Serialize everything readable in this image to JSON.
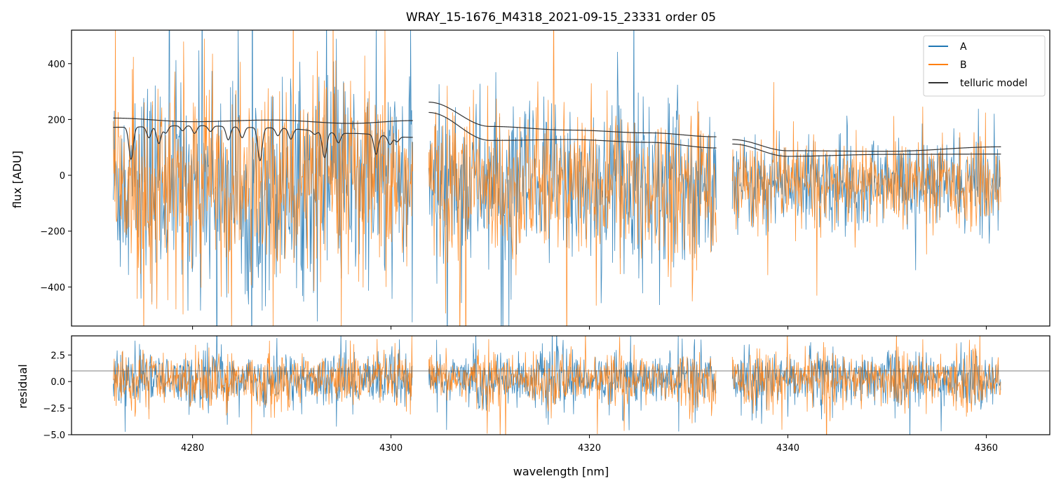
{
  "chart_data": [
    {
      "panel": "main",
      "type": "line",
      "title": "WRAY_15-1676_M4318_2021-09-15_23331  order 05",
      "xlabel": "",
      "ylabel": "flux [ADU]",
      "xlim": [
        4267.8,
        4366.4
      ],
      "ylim": [
        -540,
        520
      ],
      "yticks": [
        -400,
        -200,
        0,
        200,
        400
      ],
      "ytick_labels": [
        "−400",
        "−200",
        "0",
        "200",
        "400"
      ],
      "xticks": [
        4280,
        4300,
        4320,
        4340,
        4360
      ],
      "xtick_labels": [],
      "grid": false,
      "legend": "top-right",
      "segments": [
        [
          4272.0,
          4302.2
        ],
        [
          4303.8,
          4332.8
        ],
        [
          4334.4,
          4361.5
        ]
      ],
      "series": [
        {
          "name": "A",
          "color": "#1f77b4",
          "noise_sigma": 150,
          "baseline": -30
        },
        {
          "name": "B",
          "color": "#ff7f0e",
          "noise_sigma": 140,
          "baseline": -30
        },
        {
          "name": "telluric model",
          "color": "#333333",
          "curves": [
            {
              "x": [
                4272,
                4280,
                4288,
                4296,
                4302.2
              ],
              "y": [
                205,
                192,
                198,
                186,
                196
              ]
            },
            {
              "x": [
                4272,
                4280,
                4288,
                4296,
                4302.2
              ],
              "y": [
                172,
                178,
                170,
                150,
                136
              ]
            },
            {
              "x": [
                4303.8,
                4310,
                4318,
                4326,
                4332.8
              ],
              "y": [
                262,
                175,
                162,
                152,
                138
              ]
            },
            {
              "x": [
                4303.8,
                4310,
                4318,
                4326,
                4332.8
              ],
              "y": [
                225,
                125,
                128,
                118,
                98
              ]
            },
            {
              "x": [
                4334.4,
                4340,
                4350,
                4361.5
              ],
              "y": [
                128,
                88,
                86,
                102
              ]
            },
            {
              "x": [
                4334.4,
                4340,
                4350,
                4361.5
              ],
              "y": [
                112,
                68,
                75,
                76
              ]
            }
          ],
          "absorption_lines": [
            {
              "x": 4273.8,
              "depth": 115
            },
            {
              "x": 4275.6,
              "depth": 40
            },
            {
              "x": 4276.6,
              "depth": 62
            },
            {
              "x": 4277.3,
              "depth": 25
            },
            {
              "x": 4279.0,
              "depth": 18
            },
            {
              "x": 4280.2,
              "depth": 28
            },
            {
              "x": 4281.8,
              "depth": 20
            },
            {
              "x": 4283.6,
              "depth": 48
            },
            {
              "x": 4285.0,
              "depth": 38
            },
            {
              "x": 4286.8,
              "depth": 118
            },
            {
              "x": 4288.6,
              "depth": 28
            },
            {
              "x": 4289.9,
              "depth": 38
            },
            {
              "x": 4292.3,
              "depth": 12
            },
            {
              "x": 4293.3,
              "depth": 92
            },
            {
              "x": 4294.7,
              "depth": 35
            },
            {
              "x": 4298.5,
              "depth": 70
            },
            {
              "x": 4299.9,
              "depth": 30
            },
            {
              "x": 4300.6,
              "depth": 18
            }
          ]
        }
      ]
    },
    {
      "panel": "residual",
      "type": "line",
      "xlabel": "wavelength [nm]",
      "ylabel": "residual",
      "xlim": [
        4267.8,
        4366.4
      ],
      "ylim": [
        -5.0,
        4.3
      ],
      "yticks": [
        -5.0,
        -2.5,
        0.0,
        2.5
      ],
      "ytick_labels": [
        "−5.0",
        "−2.5",
        "0.0",
        "2.5"
      ],
      "xticks": [
        4280,
        4300,
        4320,
        4340,
        4360
      ],
      "xtick_labels": [
        "4280",
        "4300",
        "4320",
        "4340",
        "4360"
      ],
      "reference_line": 1.0,
      "segments": [
        [
          4272.0,
          4302.2
        ],
        [
          4303.8,
          4332.8
        ],
        [
          4334.4,
          4361.5
        ]
      ],
      "series": [
        {
          "name": "A",
          "color": "#1f77b4",
          "noise_sigma": 1.3,
          "baseline": 0.2
        },
        {
          "name": "B",
          "color": "#ff7f0e",
          "noise_sigma": 1.25,
          "baseline": 0.2
        }
      ]
    }
  ]
}
